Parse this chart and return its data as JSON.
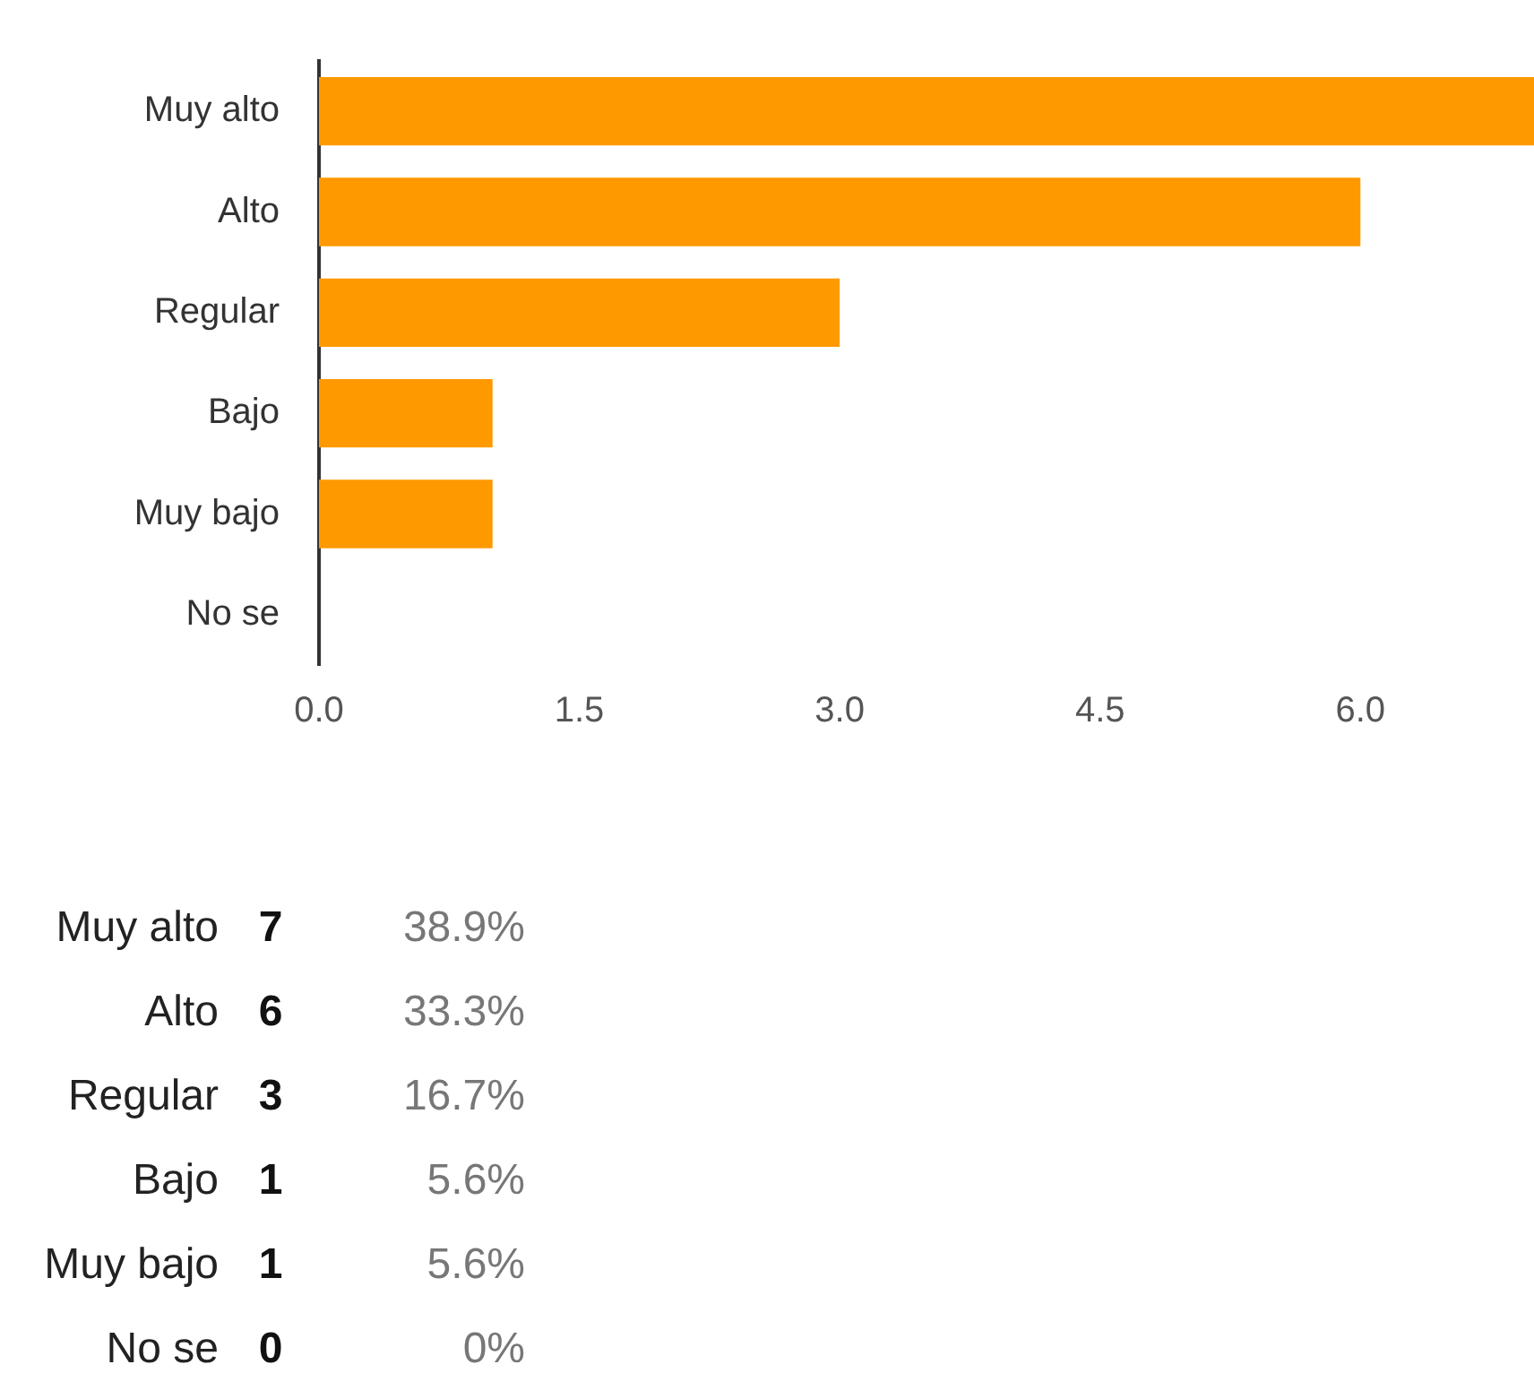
{
  "chart_data": {
    "type": "bar",
    "orientation": "horizontal",
    "categories": [
      "Muy alto",
      "Alto",
      "Regular",
      "Bajo",
      "Muy bajo",
      "No se"
    ],
    "values": [
      7,
      6,
      3,
      1,
      1,
      0
    ],
    "color": "#ff9900",
    "xlim": [
      0,
      7
    ],
    "xticks": [
      {
        "value": 0,
        "label": "0.0"
      },
      {
        "value": 1.5,
        "label": "1.5"
      },
      {
        "value": 3,
        "label": "3.0"
      },
      {
        "value": 4.5,
        "label": "4.5"
      },
      {
        "value": 6,
        "label": "6.0"
      }
    ],
    "annotations": [
      "7",
      "38.9%",
      "6",
      "33.3%",
      "3",
      "16.7%",
      "1",
      "5.6%",
      "1",
      "5.6%",
      "0",
      "0%"
    ]
  }
}
